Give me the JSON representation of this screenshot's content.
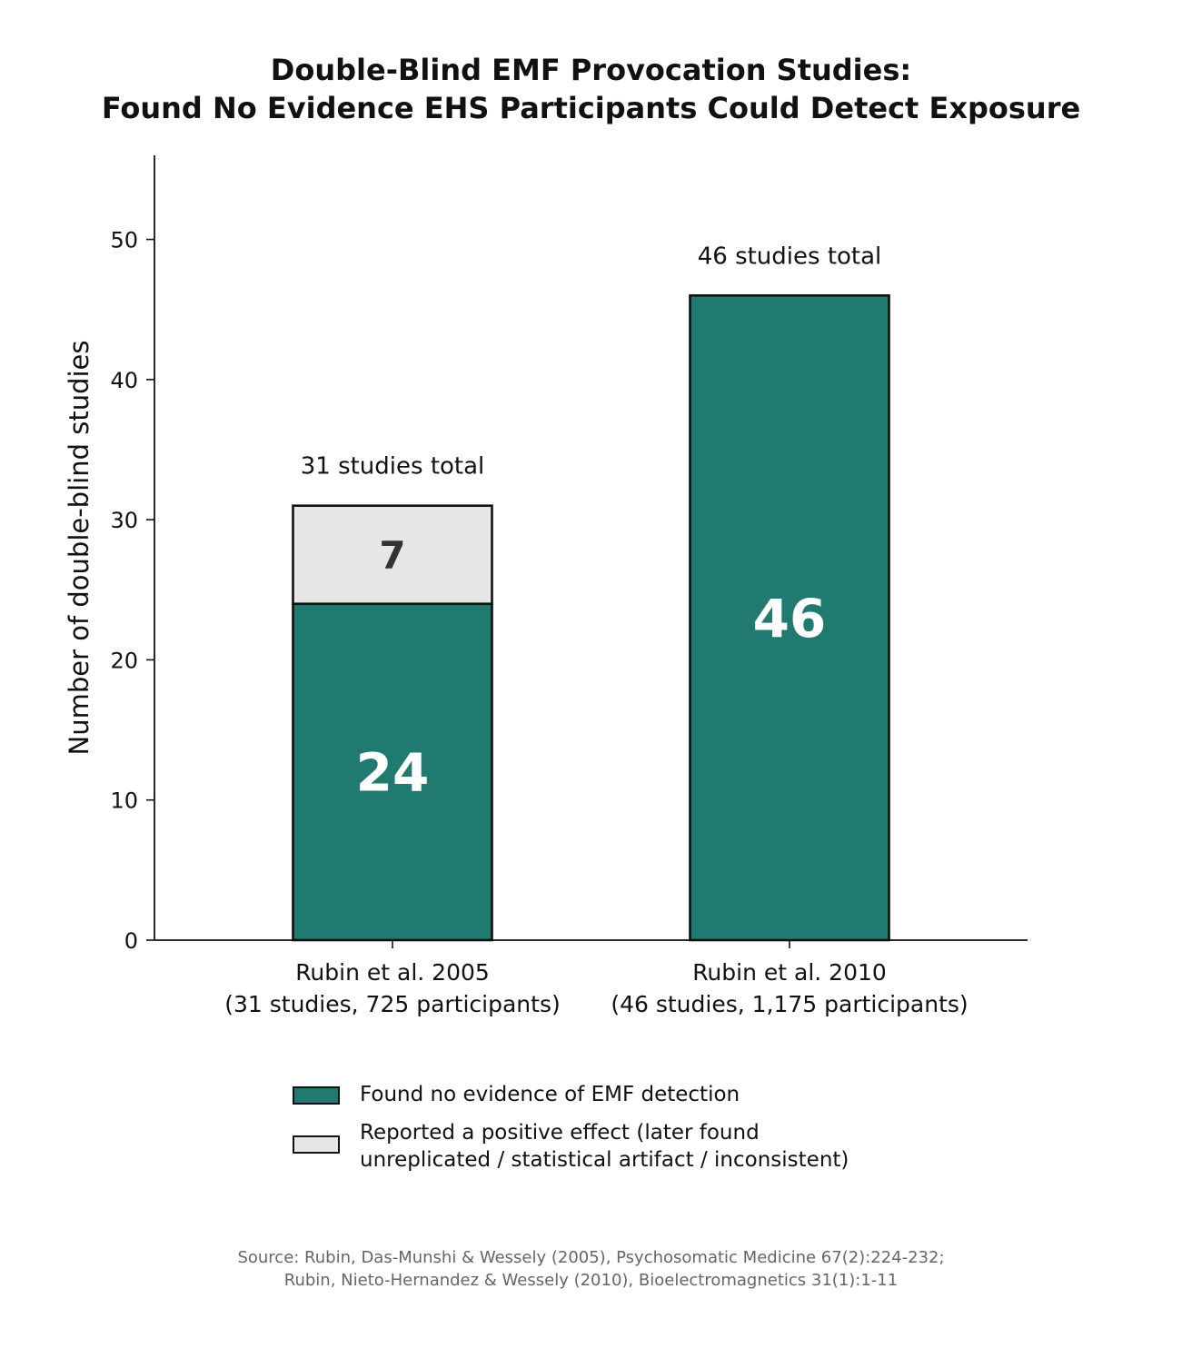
{
  "chart_data": {
    "type": "bar",
    "stacked": true,
    "title_lines": [
      "Double-Blind EMF Provocation Studies:",
      "Found No Evidence EHS Participants Could Detect Exposure"
    ],
    "ylabel": "Number of double-blind studies",
    "ylim": [
      0,
      56
    ],
    "yticks": [
      0,
      10,
      20,
      30,
      40,
      50
    ],
    "grid": false,
    "categories": [
      [
        "Rubin et al. 2005",
        "(31 studies, 725 participants)"
      ],
      [
        "Rubin et al. 2010",
        "(46 studies, 1,175 participants)"
      ]
    ],
    "series": [
      {
        "name": "Found no evidence of EMF detection",
        "values": [
          24,
          46
        ],
        "value_labels": [
          "24",
          "46"
        ],
        "color": "#207a70",
        "label_color": "#ffffff"
      },
      {
        "name": "Reported a positive effect (later found unreplicated / statistical artifact / inconsistent)",
        "values": [
          7,
          0
        ],
        "value_labels": [
          "7",
          ""
        ],
        "color": "#e6e6e6",
        "label_color": "#333333"
      }
    ],
    "totals": [
      31,
      46
    ],
    "total_labels": [
      "31 studies total",
      "46 studies total"
    ],
    "legend_placement": "bottom"
  },
  "legend": {
    "items": [
      {
        "label_lines": [
          "Found no evidence of EMF detection"
        ],
        "color": "#207a70"
      },
      {
        "label_lines": [
          "Reported a positive effect (later found",
          "unreplicated / statistical artifact / inconsistent)"
        ],
        "color": "#e6e6e6"
      }
    ]
  },
  "source": {
    "lines": [
      "Source: Rubin, Das-Munshi & Wessely (2005), Psychosomatic Medicine 67(2):224-232;",
      "Rubin, Nieto-Hernandez & Wessely (2010), Bioelectromagnetics 31(1):1-11"
    ]
  }
}
